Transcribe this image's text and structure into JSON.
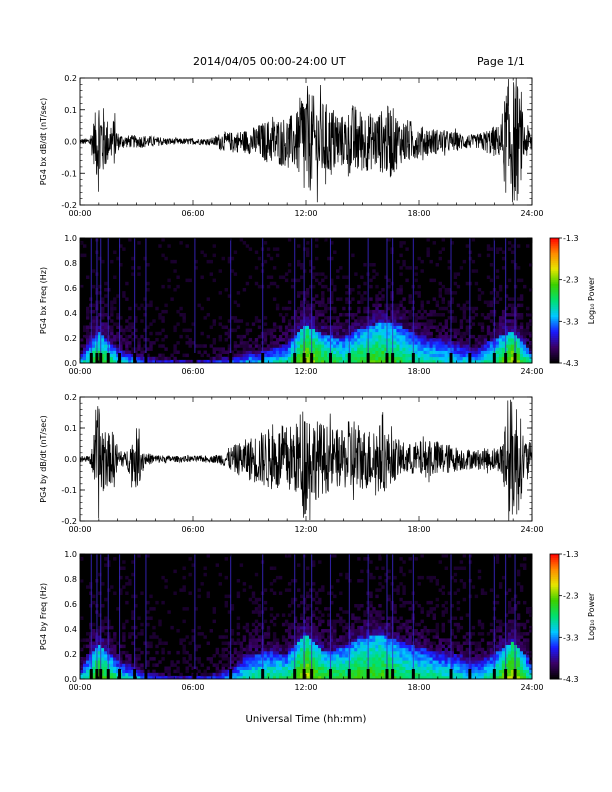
{
  "header": {
    "date_range": "2014/04/05  00:00-24:00 UT",
    "page": "Page 1/1"
  },
  "x_axis": {
    "title": "Universal Time (hh:mm)",
    "range_hours": [
      0,
      24
    ],
    "tick_labels": [
      "00:00",
      "06:00",
      "12:00",
      "18:00",
      "24:00"
    ]
  },
  "colorbar": {
    "label": "Log₁₀ Power",
    "tick_labels": [
      "-1.3",
      "-2.3",
      "-3.3",
      "-4.3"
    ],
    "range": [
      -4.3,
      -1.3
    ],
    "colormap": [
      "#000000",
      "#3a0066",
      "#1a1aff",
      "#00c8ff",
      "#00e070",
      "#3cd000",
      "#e6e600",
      "#ff8c00",
      "#ff0000"
    ]
  },
  "chart_data": [
    {
      "type": "line",
      "ylabel": "PG4 bx dB/dt (nT/sec)",
      "ylim": [
        -0.2,
        0.2
      ],
      "y_tick_labels": [
        "0.2",
        "0.1",
        "0.0",
        "-0.1",
        "-0.2"
      ],
      "x_hours": [
        0,
        0.5,
        0.8,
        1.0,
        1.3,
        1.6,
        1.8,
        2.0,
        2.4,
        3.0,
        3.5,
        4.0,
        5.0,
        6.0,
        7.0,
        7.5,
        8.0,
        9.0,
        10.0,
        11.0,
        11.5,
        11.9,
        12.3,
        12.8,
        13.5,
        14.0,
        14.5,
        15.0,
        15.5,
        16.0,
        16.5,
        17.0,
        17.5,
        18.0,
        19.0,
        20.0,
        21.0,
        22.0,
        22.3,
        22.7,
        23.2,
        23.6,
        24.0
      ],
      "envelope": [
        0.01,
        0.01,
        0.09,
        0.17,
        0.1,
        0.05,
        0.08,
        0.03,
        0.02,
        0.02,
        0.02,
        0.015,
        0.01,
        0.01,
        0.01,
        0.03,
        0.03,
        0.04,
        0.07,
        0.08,
        0.09,
        0.2,
        0.15,
        0.13,
        0.11,
        0.08,
        0.12,
        0.1,
        0.09,
        0.1,
        0.12,
        0.07,
        0.07,
        0.05,
        0.04,
        0.03,
        0.02,
        0.05,
        0.05,
        0.2,
        0.2,
        0.06,
        0.04
      ]
    },
    {
      "type": "heatmap",
      "ylabel": "PG4 bx Freq (Hz)",
      "ylim": [
        0,
        1.0
      ],
      "y_tick_labels": [
        "1.0",
        "0.8",
        "0.6",
        "0.4",
        "0.2",
        "0.0"
      ],
      "x_hours": [
        0,
        1,
        2,
        3,
        4,
        5,
        6,
        7,
        8,
        9,
        10,
        11,
        12,
        13,
        14,
        15,
        16,
        17,
        18,
        19,
        20,
        21,
        22,
        23,
        24
      ],
      "low_freq_band_top_hz": [
        0.08,
        0.25,
        0.12,
        0.08,
        0.06,
        0.05,
        0.04,
        0.05,
        0.07,
        0.1,
        0.12,
        0.15,
        0.3,
        0.22,
        0.2,
        0.28,
        0.33,
        0.3,
        0.22,
        0.2,
        0.18,
        0.12,
        0.2,
        0.25,
        0.1
      ],
      "band_level": [
        -3.6,
        -2.9,
        -3.4,
        -3.7,
        -3.9,
        -4.0,
        -4.0,
        -3.9,
        -3.8,
        -3.6,
        -3.5,
        -3.3,
        -2.6,
        -3.0,
        -3.2,
        -3.0,
        -2.9,
        -3.1,
        -3.3,
        -3.4,
        -3.5,
        -3.6,
        -3.2,
        -2.6,
        -3.5
      ],
      "background_level": -4.3,
      "vertical_streak_hours": [
        0.6,
        0.9,
        1.1,
        1.5,
        2.1,
        2.9,
        3.5,
        6.1,
        8.0,
        9.7,
        11.4,
        11.9,
        12.3,
        13.3,
        14.3,
        15.3,
        16.3,
        16.6,
        17.7,
        19.7,
        20.7,
        22.0,
        22.6,
        23.1
      ]
    },
    {
      "type": "line",
      "ylabel": "PG4 by dB/dt (nT/sec)",
      "ylim": [
        -0.2,
        0.2
      ],
      "y_tick_labels": [
        "0.2",
        "0.1",
        "0.0",
        "-0.1",
        "-0.2"
      ],
      "x_hours": [
        0,
        0.5,
        0.8,
        1.0,
        1.3,
        1.6,
        1.8,
        2.0,
        2.4,
        3.0,
        3.5,
        4.0,
        5.0,
        6.0,
        7.0,
        7.5,
        8.0,
        9.0,
        10.0,
        11.0,
        11.5,
        11.9,
        12.3,
        12.8,
        13.5,
        14.0,
        14.5,
        15.0,
        15.5,
        16.0,
        16.5,
        17.0,
        17.5,
        18.0,
        19.0,
        20.0,
        21.0,
        22.0,
        22.3,
        22.7,
        23.2,
        23.6,
        24.0
      ],
      "envelope": [
        0.01,
        0.01,
        0.1,
        0.2,
        0.1,
        0.08,
        0.1,
        0.04,
        0.02,
        0.1,
        0.02,
        0.015,
        0.01,
        0.01,
        0.01,
        0.02,
        0.04,
        0.07,
        0.1,
        0.11,
        0.12,
        0.2,
        0.14,
        0.12,
        0.1,
        0.09,
        0.15,
        0.1,
        0.1,
        0.12,
        0.08,
        0.06,
        0.05,
        0.06,
        0.06,
        0.04,
        0.03,
        0.04,
        0.04,
        0.2,
        0.2,
        0.07,
        0.05
      ]
    },
    {
      "type": "heatmap",
      "ylabel": "PG4 by Freq (Hz)",
      "ylim": [
        0,
        1.0
      ],
      "y_tick_labels": [
        "1.0",
        "0.8",
        "0.6",
        "0.4",
        "0.2",
        "0.0"
      ],
      "x_hours": [
        0,
        1,
        2,
        3,
        4,
        5,
        6,
        7,
        8,
        9,
        10,
        11,
        12,
        13,
        14,
        15,
        16,
        17,
        18,
        19,
        20,
        21,
        22,
        23,
        24
      ],
      "low_freq_band_top_hz": [
        0.08,
        0.28,
        0.15,
        0.1,
        0.07,
        0.05,
        0.05,
        0.06,
        0.1,
        0.2,
        0.22,
        0.2,
        0.35,
        0.22,
        0.25,
        0.33,
        0.35,
        0.3,
        0.25,
        0.22,
        0.2,
        0.15,
        0.2,
        0.3,
        0.12
      ],
      "band_level": [
        -3.5,
        -2.8,
        -3.3,
        -3.6,
        -3.9,
        -4.0,
        -4.0,
        -3.9,
        -3.6,
        -3.3,
        -3.2,
        -3.2,
        -2.6,
        -3.0,
        -3.1,
        -2.9,
        -2.9,
        -3.1,
        -3.2,
        -3.3,
        -3.4,
        -3.5,
        -3.2,
        -2.5,
        -3.4
      ],
      "background_level": -4.3,
      "vertical_streak_hours": [
        0.6,
        0.9,
        1.1,
        1.5,
        2.1,
        2.9,
        3.5,
        6.1,
        8.0,
        9.7,
        11.4,
        11.9,
        12.3,
        13.3,
        14.3,
        15.3,
        16.3,
        16.6,
        17.7,
        19.7,
        20.7,
        22.0,
        22.6,
        23.1
      ]
    }
  ]
}
